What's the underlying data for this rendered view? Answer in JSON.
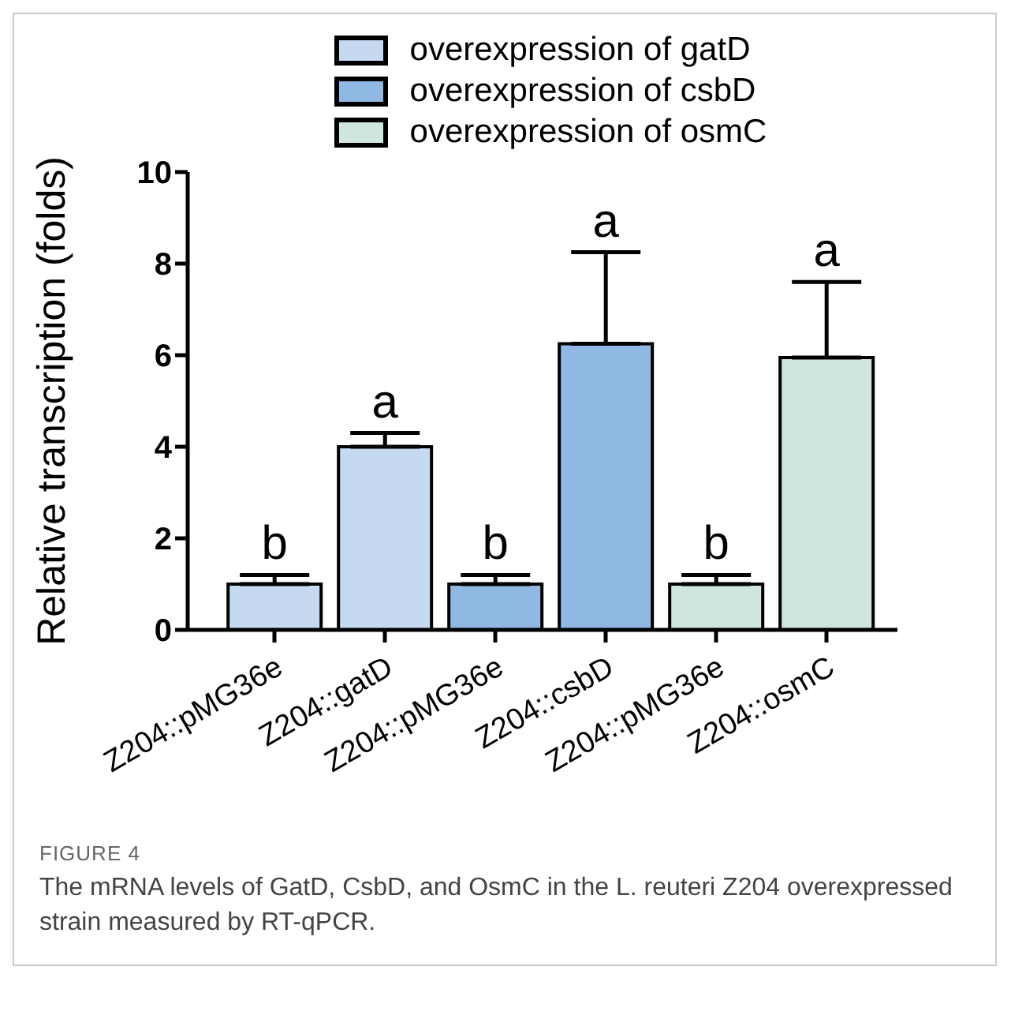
{
  "chart_data": {
    "type": "bar",
    "ylabel": "Relative transcription (folds)",
    "categories": [
      "Z204::pMG36e",
      "Z204::gatD",
      "Z204::pMG36e",
      "Z204::csbD",
      "Z204::pMG36e",
      "Z204::osmC"
    ],
    "series": [
      {
        "name": "overexpression of gatD",
        "color": "#c5d9f0",
        "values": [
          1,
          4,
          null,
          null,
          null,
          null
        ],
        "errors": [
          [
            1,
            1.2
          ],
          [
            4,
            4.3
          ],
          null,
          null,
          null,
          null
        ],
        "value_labels": [
          "b",
          "a",
          null,
          null,
          null,
          null
        ]
      },
      {
        "name": "overexpression of csbD",
        "color": "#8fb8e3",
        "values": [
          null,
          null,
          1,
          6.25,
          null,
          null
        ],
        "errors": [
          null,
          null,
          [
            1,
            1.2
          ],
          [
            6.25,
            8.25
          ],
          null,
          null
        ],
        "value_labels": [
          null,
          null,
          "b",
          "a",
          null,
          null
        ]
      },
      {
        "name": "overexpression of osmC",
        "color": "#cfe6dc",
        "values": [
          null,
          null,
          null,
          null,
          1,
          5.95
        ],
        "errors": [
          null,
          null,
          null,
          null,
          [
            1,
            1.2
          ],
          [
            5.95,
            7.6
          ]
        ],
        "value_labels": [
          null,
          null,
          null,
          null,
          "b",
          "a"
        ]
      }
    ],
    "ylim": [
      0,
      10
    ],
    "yticks": [
      0,
      2,
      4,
      6,
      8,
      10
    ],
    "grid": false,
    "legend": "top",
    "annotations": [
      "FIGURE 4",
      "The mRNA levels of GatD, CsbD, and OsmC in the L. reuteri Z204 overexpressed strain measured by RT-qPCR."
    ]
  }
}
